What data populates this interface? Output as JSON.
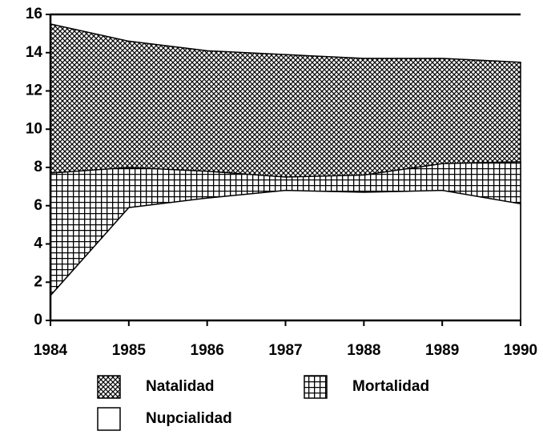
{
  "chart_data": {
    "type": "area",
    "x": [
      1984,
      1985,
      1986,
      1987,
      1988,
      1989,
      1990
    ],
    "xlim": [
      1984,
      1990
    ],
    "xticks": [
      1984,
      1985,
      1986,
      1987,
      1988,
      1989,
      1990
    ],
    "ylim": [
      0,
      16
    ],
    "yticks": [
      0,
      2,
      4,
      6,
      8,
      10,
      12,
      14,
      16
    ],
    "series": [
      {
        "name": "Natalidad",
        "color": "#000000",
        "values": [
          15.5,
          14.6,
          14.1,
          13.9,
          13.7,
          13.7,
          13.5
        ]
      },
      {
        "name": "Mortalidad",
        "color": "#000000",
        "values": [
          7.7,
          8.0,
          7.8,
          7.5,
          7.6,
          8.2,
          8.3
        ]
      },
      {
        "name": "Nupcialidad",
        "color": "#000000",
        "values": [
          1.3,
          5.9,
          6.4,
          6.8,
          6.7,
          6.8,
          6.1
        ]
      }
    ]
  }
}
